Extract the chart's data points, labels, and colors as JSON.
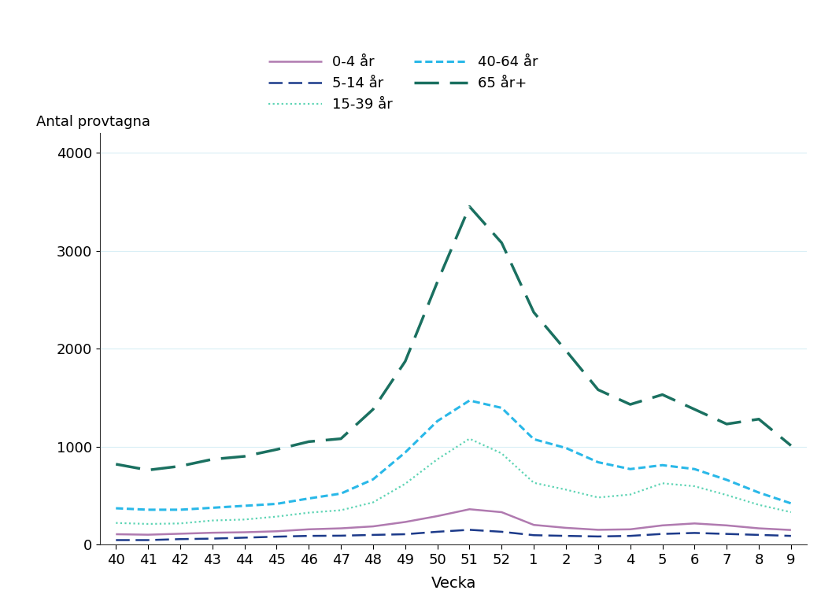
{
  "x_labels": [
    "40",
    "41",
    "42",
    "43",
    "44",
    "45",
    "46",
    "47",
    "48",
    "49",
    "50",
    "51",
    "52",
    "1",
    "2",
    "3",
    "4",
    "5",
    "6",
    "7",
    "8",
    "9"
  ],
  "series": {
    "0-4 år": {
      "color": "#b07ab0",
      "linewidth": 1.8,
      "values": [
        105,
        100,
        110,
        120,
        125,
        135,
        155,
        165,
        185,
        230,
        290,
        360,
        330,
        200,
        170,
        150,
        155,
        195,
        215,
        195,
        165,
        148
      ]
    },
    "5-14 år": {
      "color": "#1c3a8a",
      "linewidth": 1.8,
      "values": [
        45,
        45,
        55,
        60,
        70,
        80,
        88,
        90,
        98,
        105,
        130,
        150,
        130,
        95,
        88,
        82,
        88,
        108,
        118,
        108,
        98,
        88
      ]
    },
    "15-39 år": {
      "color": "#5dd4b4",
      "linewidth": 1.6,
      "values": [
        220,
        210,
        215,
        245,
        255,
        285,
        325,
        350,
        430,
        620,
        870,
        1080,
        930,
        630,
        560,
        480,
        510,
        625,
        595,
        505,
        405,
        330
      ]
    },
    "40-64 år": {
      "color": "#29b8e8",
      "linewidth": 2.2,
      "values": [
        370,
        355,
        355,
        375,
        395,
        415,
        470,
        520,
        665,
        940,
        1260,
        1470,
        1395,
        1075,
        985,
        840,
        770,
        810,
        770,
        660,
        530,
        420
      ]
    },
    "65 år+": {
      "color": "#1a7060",
      "linewidth": 2.5,
      "values": [
        820,
        760,
        800,
        870,
        900,
        970,
        1050,
        1080,
        1380,
        1870,
        2680,
        3450,
        3080,
        2370,
        1980,
        1580,
        1430,
        1530,
        1380,
        1230,
        1280,
        1010
      ]
    }
  },
  "ylabel": "Antal provtagna",
  "xlabel": "Vecka",
  "ylim": [
    0,
    4200
  ],
  "yticks": [
    0,
    1000,
    2000,
    3000,
    4000
  ],
  "background_color": "#ffffff",
  "grid_color": "#d8eef5",
  "legend_ncol": 2,
  "legend_order_col1": [
    "0-4 år",
    "15-39 år",
    "65 år+"
  ],
  "legend_order_col2": [
    "5-14 år",
    "40-64 år"
  ]
}
